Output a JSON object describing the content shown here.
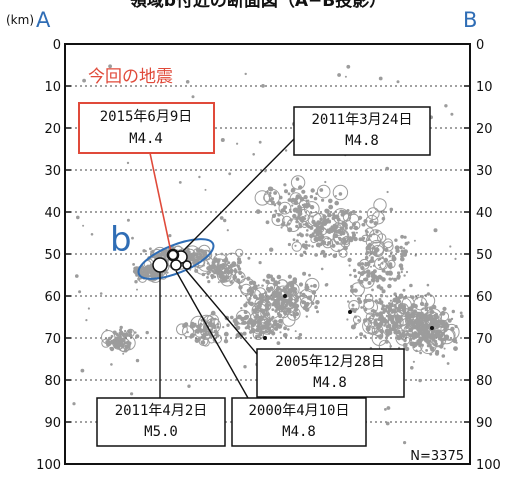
{
  "chart_data": {
    "type": "scatter",
    "title": "領域b付近の断面図（A−B投影）",
    "corner_labels": {
      "left": "A",
      "right": "B"
    },
    "ylabel_unit": "(km)",
    "ylim": [
      0,
      100
    ],
    "y_inverted": true,
    "y_ticks": [
      0,
      10,
      20,
      30,
      40,
      50,
      60,
      70,
      80,
      90,
      100
    ],
    "grid": "horizontal-dotted",
    "count_label": "N=3375",
    "region_label": "b",
    "current_event_label": "今回の地震",
    "colors": {
      "gray": "#9c9c9c",
      "current": "#e04a3a",
      "ellipse": "#2f6db5",
      "letter": "#2f6db5",
      "dark": "#111111"
    },
    "events": [
      {
        "date": "2015年6月9日",
        "magnitude": "M4.4",
        "depth_km": 51,
        "highlight": true
      },
      {
        "date": "2011年3月24日",
        "magnitude": "M4.8",
        "depth_km": 52
      },
      {
        "date": "2005年12月28日",
        "magnitude": "M4.8",
        "depth_km": 54
      },
      {
        "date": "2011年4月2日",
        "magnitude": "M5.0",
        "depth_km": 54
      },
      {
        "date": "2000年4月10日",
        "magnitude": "M4.8",
        "depth_km": 54
      }
    ]
  }
}
